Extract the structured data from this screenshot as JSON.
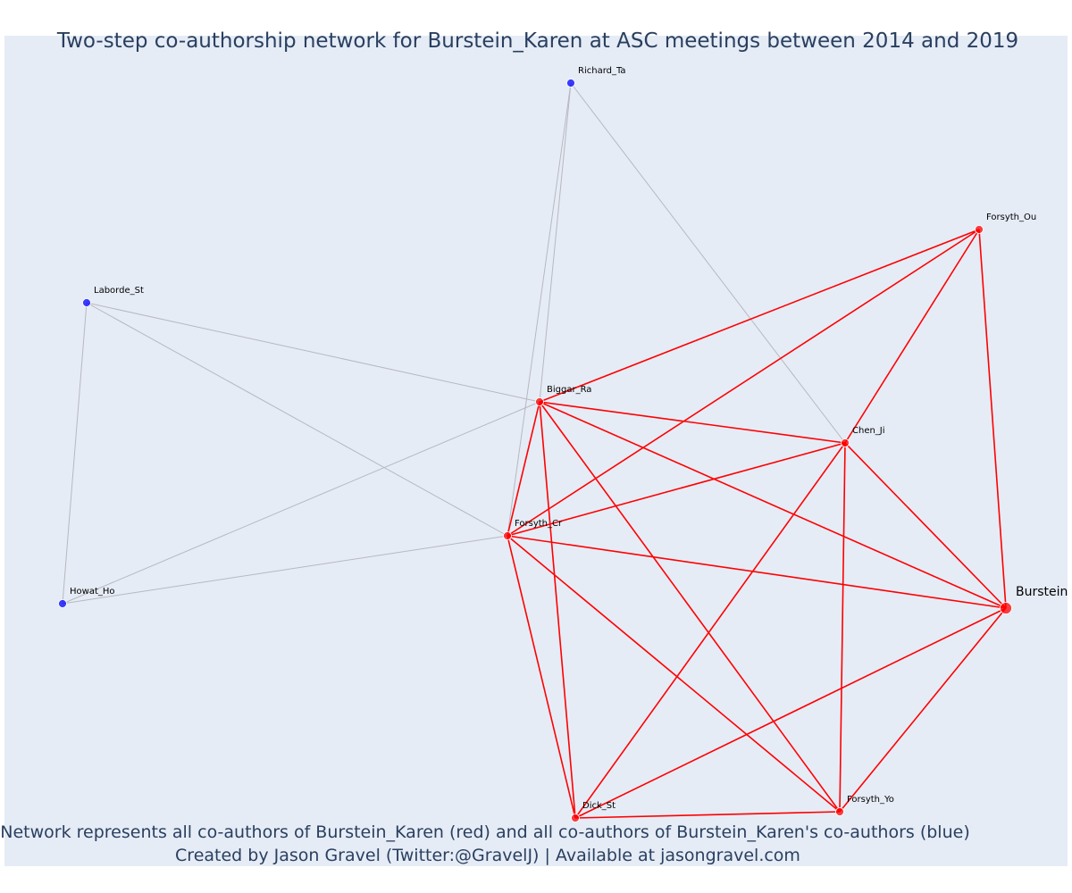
{
  "title": "Two-step co-authorship network for Burstein_Karen at ASC meetings between 2014 and 2019",
  "caption_line1": "Network represents all co-authors of Burstein_Karen (red) and all co-authors of Burstein_Karen's co-authors (blue)",
  "caption_line2": "Created by Jason Gravel (Twitter:@GravelJ) | Available at jasongravel.com",
  "colors": {
    "plot_bg": "#e5ecf6",
    "coauthor": "#ff0000",
    "second_step": "#0000ff",
    "coauthor_edge": "#ff0000",
    "second_step_edge": "#b8b8c0"
  },
  "chart_data": {
    "type": "network",
    "nodes": [
      {
        "id": "Richard_Ta",
        "group": "second_step"
      },
      {
        "id": "Forsyth_Ou",
        "group": "coauthor"
      },
      {
        "id": "Laborde_St",
        "group": "second_step"
      },
      {
        "id": "Biggar_Ra",
        "group": "coauthor"
      },
      {
        "id": "Chen_Ji",
        "group": "coauthor"
      },
      {
        "id": "Forsyth_Cr",
        "group": "coauthor"
      },
      {
        "id": "Howat_Ho",
        "group": "second_step"
      },
      {
        "id": "Burstein",
        "group": "coauthor",
        "focal": true
      },
      {
        "id": "Dick_St",
        "group": "coauthor"
      },
      {
        "id": "Forsyth_Yo",
        "group": "coauthor"
      }
    ],
    "edges": [
      {
        "source": "Richard_Ta",
        "target": "Forsyth_Cr",
        "type": "second_step"
      },
      {
        "source": "Richard_Ta",
        "target": "Biggar_Ra",
        "type": "second_step"
      },
      {
        "source": "Richard_Ta",
        "target": "Chen_Ji",
        "type": "second_step"
      },
      {
        "source": "Laborde_St",
        "target": "Biggar_Ra",
        "type": "second_step"
      },
      {
        "source": "Laborde_St",
        "target": "Forsyth_Cr",
        "type": "second_step"
      },
      {
        "source": "Laborde_St",
        "target": "Howat_Ho",
        "type": "second_step"
      },
      {
        "source": "Howat_Ho",
        "target": "Biggar_Ra",
        "type": "second_step"
      },
      {
        "source": "Howat_Ho",
        "target": "Forsyth_Cr",
        "type": "second_step"
      },
      {
        "source": "Forsyth_Ou",
        "target": "Biggar_Ra",
        "type": "coauthor"
      },
      {
        "source": "Forsyth_Ou",
        "target": "Forsyth_Cr",
        "type": "coauthor"
      },
      {
        "source": "Forsyth_Ou",
        "target": "Chen_Ji",
        "type": "coauthor"
      },
      {
        "source": "Forsyth_Ou",
        "target": "Burstein",
        "type": "coauthor"
      },
      {
        "source": "Biggar_Ra",
        "target": "Chen_Ji",
        "type": "coauthor"
      },
      {
        "source": "Biggar_Ra",
        "target": "Forsyth_Cr",
        "type": "coauthor"
      },
      {
        "source": "Biggar_Ra",
        "target": "Burstein",
        "type": "coauthor"
      },
      {
        "source": "Biggar_Ra",
        "target": "Dick_St",
        "type": "coauthor"
      },
      {
        "source": "Biggar_Ra",
        "target": "Forsyth_Yo",
        "type": "coauthor"
      },
      {
        "source": "Chen_Ji",
        "target": "Forsyth_Cr",
        "type": "coauthor"
      },
      {
        "source": "Chen_Ji",
        "target": "Burstein",
        "type": "coauthor"
      },
      {
        "source": "Chen_Ji",
        "target": "Dick_St",
        "type": "coauthor"
      },
      {
        "source": "Chen_Ji",
        "target": "Forsyth_Yo",
        "type": "coauthor"
      },
      {
        "source": "Forsyth_Cr",
        "target": "Burstein",
        "type": "coauthor"
      },
      {
        "source": "Forsyth_Cr",
        "target": "Dick_St",
        "type": "coauthor"
      },
      {
        "source": "Forsyth_Cr",
        "target": "Forsyth_Yo",
        "type": "coauthor"
      },
      {
        "source": "Burstein",
        "target": "Dick_St",
        "type": "coauthor"
      },
      {
        "source": "Burstein",
        "target": "Forsyth_Yo",
        "type": "coauthor"
      },
      {
        "source": "Dick_St",
        "target": "Forsyth_Yo",
        "type": "coauthor"
      }
    ]
  }
}
